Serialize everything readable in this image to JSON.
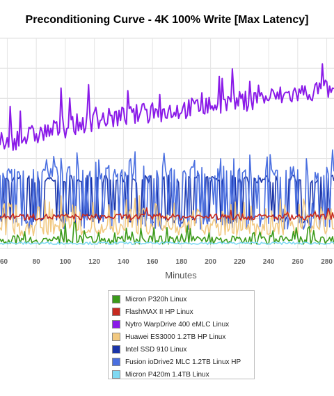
{
  "chart_data": {
    "type": "line",
    "title": "Preconditioning Curve - 4K 100% Write [Max Latency]",
    "xlabel": "Minutes",
    "ylabel": "",
    "x_ticks": [
      60,
      80,
      100,
      120,
      140,
      160,
      180,
      200,
      220,
      240,
      260,
      280
    ],
    "xlim": [
      55,
      285
    ],
    "ylim": [
      0,
      100
    ],
    "grid": true,
    "legend_position": "bottom",
    "series": [
      {
        "name": "Micron P320h Linux",
        "color": "#3a9a19",
        "base": 4,
        "noise": 2,
        "spike": 5,
        "spike_rate": 0.12
      },
      {
        "name": "FlashMAX II HP Linux",
        "color": "#c62a20",
        "base": 15,
        "noise": 1.5,
        "spike": 3,
        "spike_rate": 0.05
      },
      {
        "name": "Nytro WarpDrive 400 eMLC Linux",
        "color": "#8a1ae8",
        "trend": [
          [
            55,
            50
          ],
          [
            120,
            61
          ],
          [
            200,
            68
          ],
          [
            285,
            76
          ]
        ],
        "noise": 5,
        "spike": 11,
        "spike_rate": 0.1
      },
      {
        "name": "Huawei ES3000 1.2TB HP Linux",
        "color": "#f2c981",
        "base": 9,
        "noise": 3,
        "spike": 10,
        "spike_rate": 0.3
      },
      {
        "name": "Intel SSD 910 Linux",
        "color": "#1a34a8",
        "low": 14,
        "high": 33,
        "noise": 2
      },
      {
        "name": "Fusion ioDrive2 MLC 1.2TB Linux HP",
        "color": "#4a6fe0",
        "low": 12,
        "high": 36,
        "noise": 3,
        "spike": 6,
        "spike_rate": 0.15
      },
      {
        "name": "Micron P420m 1.4TB Linux",
        "color": "#7fd9f2",
        "base": 2.5,
        "noise": 0.6
      }
    ]
  }
}
